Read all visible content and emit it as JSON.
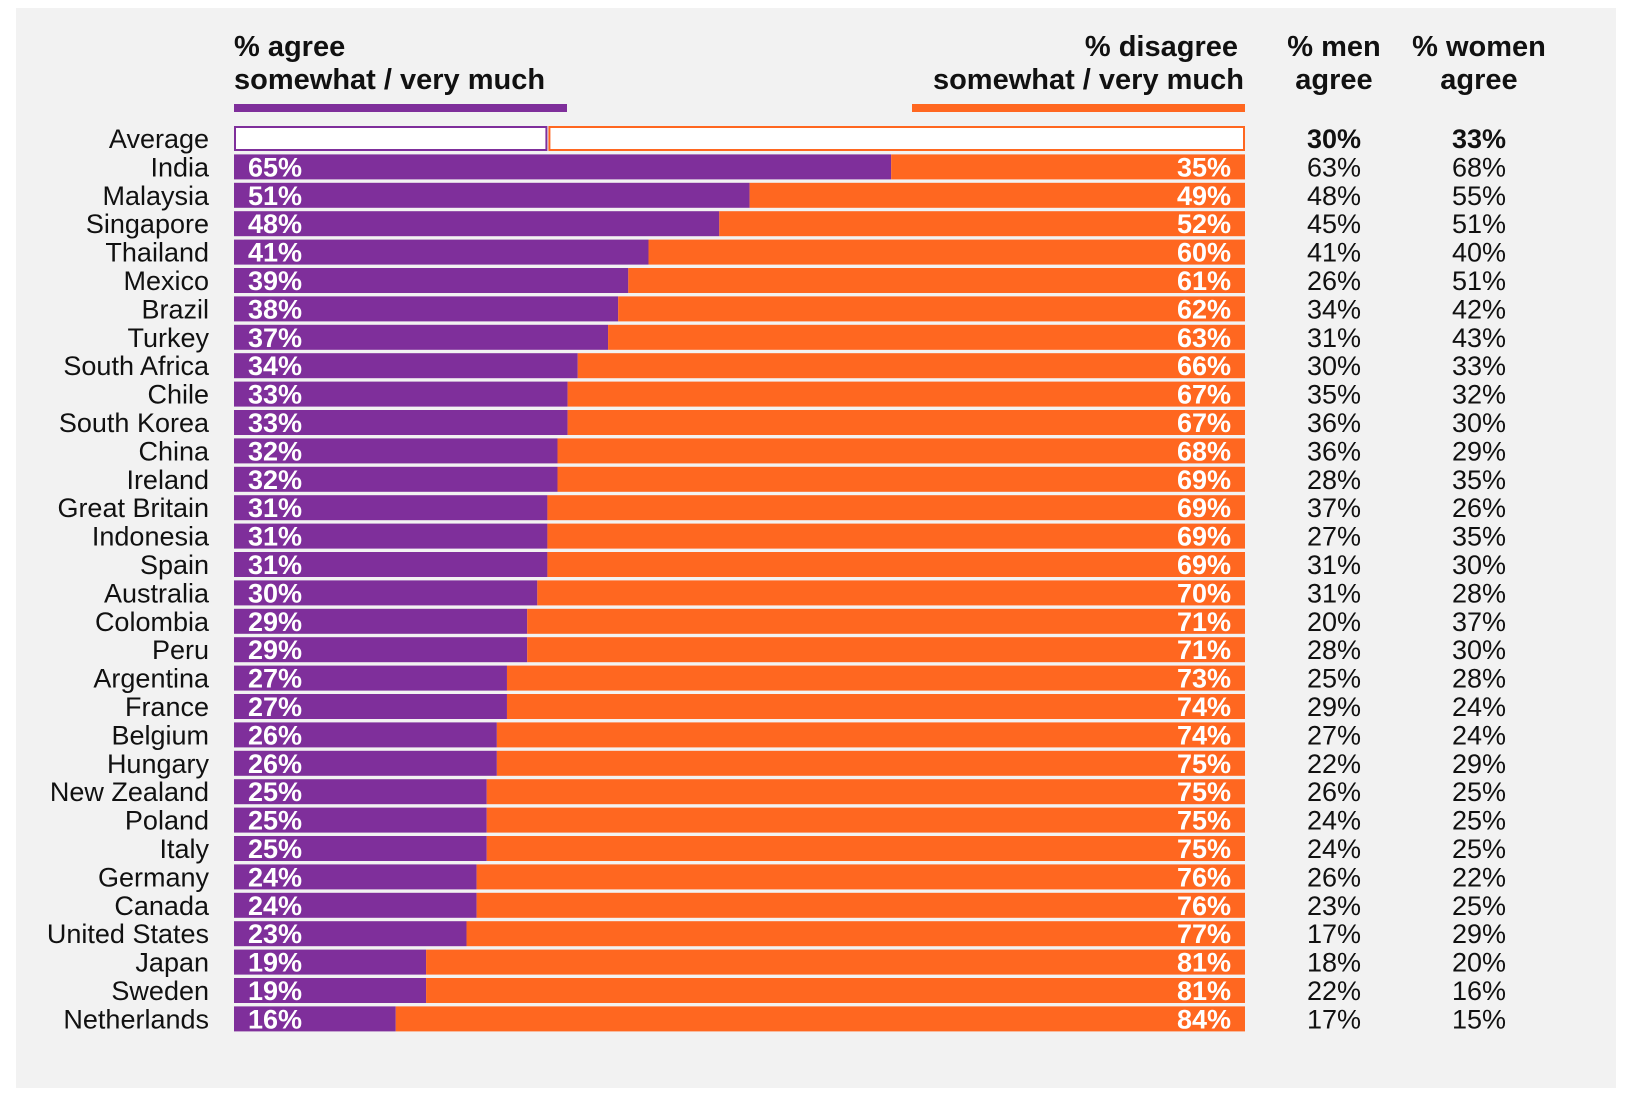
{
  "headers": {
    "agree_line1": "% agree",
    "agree_line2": "somewhat / very much",
    "disagree_line1": "% disagree",
    "disagree_line2": "somewhat / very much",
    "men_line1": "% men",
    "men_line2": "agree",
    "women_line1": "% women",
    "women_line2": "agree"
  },
  "colors": {
    "agree": "#7f2f9b",
    "disagree": "#ff6720",
    "background": "#f2f2f2"
  },
  "chart_data": {
    "type": "bar",
    "orientation": "horizontal-stacked-100",
    "categories": [
      "Average",
      "India",
      "Malaysia",
      "Singapore",
      "Thailand",
      "Mexico",
      "Brazil",
      "Turkey",
      "South Africa",
      "Chile",
      "South Korea",
      "China",
      "Ireland",
      "Great Britain",
      "Indonesia",
      "Spain",
      "Australia",
      "Colombia",
      "Peru",
      "Argentina",
      "France",
      "Belgium",
      "Hungary",
      "New Zealand",
      "Poland",
      "Italy",
      "Germany",
      "Canada",
      "United States",
      "Japan",
      "Sweden",
      "Netherlands"
    ],
    "series": [
      {
        "name": "% agree somewhat / very much",
        "values": [
          31,
          65,
          51,
          48,
          41,
          39,
          38,
          37,
          34,
          33,
          33,
          32,
          32,
          31,
          31,
          31,
          30,
          29,
          29,
          27,
          27,
          26,
          26,
          25,
          25,
          25,
          24,
          24,
          23,
          19,
          19,
          16
        ]
      },
      {
        "name": "% disagree somewhat / very much",
        "values": [
          69,
          35,
          49,
          52,
          60,
          61,
          62,
          63,
          66,
          67,
          67,
          68,
          69,
          69,
          69,
          69,
          70,
          71,
          71,
          73,
          74,
          74,
          75,
          75,
          75,
          75,
          76,
          76,
          77,
          81,
          81,
          84
        ]
      }
    ],
    "men_agree": [
      30,
      63,
      48,
      45,
      41,
      26,
      34,
      31,
      30,
      35,
      36,
      36,
      28,
      37,
      27,
      31,
      31,
      20,
      28,
      25,
      29,
      27,
      22,
      26,
      24,
      24,
      26,
      23,
      17,
      18,
      22,
      17
    ],
    "women_agree": [
      33,
      68,
      55,
      51,
      40,
      51,
      42,
      43,
      33,
      32,
      30,
      29,
      35,
      26,
      35,
      30,
      28,
      37,
      30,
      28,
      24,
      24,
      29,
      25,
      25,
      25,
      22,
      25,
      29,
      20,
      16,
      15
    ],
    "ylim": [
      0,
      100
    ],
    "highlight_row": "Average"
  }
}
